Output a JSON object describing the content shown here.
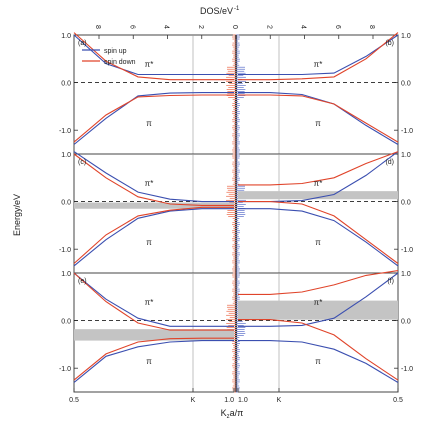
{
  "figure": {
    "top_label": "DOS/eV",
    "top_label_sup": "-1",
    "y_label": "Energy/eV",
    "x_label": "K",
    "x_label_sub": "z",
    "x_label_rest": "a/π"
  },
  "chart_data": {
    "type": "line",
    "colors": {
      "spin_up": "#3b4fb0",
      "spin_down": "#e0442a",
      "gap_band": "#c4c4c4",
      "dos_up": "#7f8fd6",
      "dos_down": "#f08a70"
    },
    "legend": {
      "placement": "top-left of panel (a)",
      "entries": [
        "spin up",
        "spin down"
      ]
    },
    "x_ticks_bottom": [
      "0.5",
      "K",
      "1.0",
      "1.0",
      "K",
      "0.5"
    ],
    "top_ticks": [
      "8",
      "6",
      "4",
      "2",
      "0",
      "2",
      "4",
      "6",
      "8"
    ],
    "rows": [
      {
        "ylim": [
          -1.5,
          1.0
        ],
        "yticks": [
          "1.0",
          "0.0",
          "-1.0"
        ],
        "yticks_right": [
          "1.0",
          "0.0",
          "-1.0"
        ]
      },
      {
        "ylim": [
          -1.5,
          1.0
        ],
        "yticks": [
          "1.0",
          "0.0",
          "-1.0"
        ],
        "yticks_right": [
          "1.0",
          "0.0",
          "-1.0"
        ]
      },
      {
        "ylim": [
          -1.5,
          1.0
        ],
        "yticks": [
          "1.0",
          "0.0",
          "-1.0"
        ],
        "yticks_right": [
          "1.0",
          "0.0",
          "-1.0"
        ]
      }
    ],
    "panels": [
      {
        "id": "a",
        "label": "(a)",
        "row": 0,
        "side": "left",
        "up": {
          "top": [
            [
              0.5,
              1.0
            ],
            [
              0.6,
              0.4
            ],
            [
              0.7,
              0.17
            ],
            [
              0.8,
              0.17
            ],
            [
              0.9,
              0.17
            ],
            [
              1.0,
              0.17
            ]
          ],
          "bottom": [
            [
              0.5,
              -1.3
            ],
            [
              0.6,
              -0.75
            ],
            [
              0.7,
              -0.28
            ],
            [
              0.8,
              -0.22
            ],
            [
              0.9,
              -0.21
            ],
            [
              1.0,
              -0.21
            ]
          ]
        },
        "down": {
          "top": [
            [
              0.5,
              1.05
            ],
            [
              0.6,
              0.45
            ],
            [
              0.7,
              0.12
            ],
            [
              0.8,
              0.06
            ],
            [
              0.9,
              0.06
            ],
            [
              1.0,
              0.06
            ]
          ],
          "bottom": [
            [
              0.5,
              -1.25
            ],
            [
              0.6,
              -0.68
            ],
            [
              0.7,
              -0.3
            ],
            [
              0.8,
              -0.27
            ],
            [
              0.9,
              -0.26
            ],
            [
              1.0,
              -0.26
            ]
          ]
        },
        "gap": null,
        "annotations": [
          "π*",
          "π"
        ]
      },
      {
        "id": "b",
        "label": "(b)",
        "row": 0,
        "side": "right",
        "up": {
          "top": [
            [
              1.0,
              0.17
            ],
            [
              0.9,
              0.17
            ],
            [
              0.8,
              0.17
            ],
            [
              0.7,
              0.2
            ],
            [
              0.6,
              0.55
            ],
            [
              0.5,
              1.0
            ]
          ],
          "bottom": [
            [
              1.0,
              -0.21
            ],
            [
              0.9,
              -0.21
            ],
            [
              0.8,
              -0.25
            ],
            [
              0.7,
              -0.45
            ],
            [
              0.6,
              -0.9
            ],
            [
              0.5,
              -1.3
            ]
          ]
        },
        "down": {
          "top": [
            [
              1.0,
              0.06
            ],
            [
              0.9,
              0.06
            ],
            [
              0.8,
              0.08
            ],
            [
              0.7,
              0.12
            ],
            [
              0.6,
              0.5
            ],
            [
              0.5,
              1.05
            ]
          ],
          "bottom": [
            [
              1.0,
              -0.26
            ],
            [
              0.9,
              -0.26
            ],
            [
              0.8,
              -0.28
            ],
            [
              0.7,
              -0.45
            ],
            [
              0.6,
              -0.85
            ],
            [
              0.5,
              -1.25
            ]
          ]
        },
        "gap": null,
        "annotations": [
          "π*",
          "π"
        ]
      },
      {
        "id": "c",
        "label": "(c)",
        "row": 1,
        "side": "left",
        "up": {
          "top": [
            [
              0.5,
              1.05
            ],
            [
              0.6,
              0.6
            ],
            [
              0.7,
              0.2
            ],
            [
              0.8,
              0.05
            ],
            [
              0.9,
              0.0
            ],
            [
              1.0,
              0.0
            ]
          ],
          "bottom": [
            [
              0.5,
              -1.35
            ],
            [
              0.6,
              -0.8
            ],
            [
              0.7,
              -0.35
            ],
            [
              0.8,
              -0.2
            ],
            [
              0.9,
              -0.15
            ],
            [
              1.0,
              -0.15
            ]
          ]
        },
        "down": {
          "top": [
            [
              0.5,
              1.0
            ],
            [
              0.6,
              0.5
            ],
            [
              0.7,
              0.1
            ],
            [
              0.8,
              -0.05
            ],
            [
              0.9,
              -0.08
            ],
            [
              1.0,
              -0.08
            ]
          ],
          "bottom": [
            [
              0.5,
              -1.3
            ],
            [
              0.6,
              -0.7
            ],
            [
              0.7,
              -0.3
            ],
            [
              0.8,
              -0.18
            ],
            [
              0.9,
              -0.12
            ],
            [
              1.0,
              -0.12
            ]
          ]
        },
        "gap": [
          -0.15,
          -0.02
        ],
        "annotations": [
          "π*",
          "π"
        ]
      },
      {
        "id": "d",
        "label": "(d)",
        "row": 1,
        "side": "right",
        "up": {
          "top": [
            [
              1.0,
              0.0
            ],
            [
              0.9,
              0.0
            ],
            [
              0.8,
              0.02
            ],
            [
              0.7,
              0.15
            ],
            [
              0.6,
              0.55
            ],
            [
              0.5,
              1.05
            ]
          ],
          "bottom": [
            [
              1.0,
              -0.15
            ],
            [
              0.9,
              -0.15
            ],
            [
              0.8,
              -0.2
            ],
            [
              0.7,
              -0.4
            ],
            [
              0.6,
              -0.85
            ],
            [
              0.5,
              -1.35
            ]
          ]
        },
        "down": {
          "top": [
            [
              1.0,
              0.35
            ],
            [
              0.9,
              0.35
            ],
            [
              0.8,
              0.38
            ],
            [
              0.7,
              0.5
            ],
            [
              0.6,
              0.8
            ],
            [
              0.5,
              1.05
            ]
          ],
          "bottom": [
            [
              1.0,
              0.0
            ],
            [
              0.9,
              0.0
            ],
            [
              0.8,
              -0.05
            ],
            [
              0.7,
              -0.3
            ],
            [
              0.6,
              -0.8
            ],
            [
              0.5,
              -1.3
            ]
          ]
        },
        "gap": [
          0.05,
          0.22
        ],
        "annotations": [
          "π*",
          "π"
        ]
      },
      {
        "id": "e",
        "label": "(e)",
        "row": 2,
        "side": "left",
        "up": {
          "top": [
            [
              0.5,
              1.0
            ],
            [
              0.6,
              0.45
            ],
            [
              0.7,
              0.05
            ],
            [
              0.8,
              -0.12
            ],
            [
              0.9,
              -0.12
            ],
            [
              1.0,
              -0.12
            ]
          ],
          "bottom": [
            [
              0.5,
              -1.3
            ],
            [
              0.6,
              -0.75
            ],
            [
              0.7,
              -0.55
            ],
            [
              0.8,
              -0.45
            ],
            [
              0.9,
              -0.42
            ],
            [
              1.0,
              -0.42
            ]
          ]
        },
        "down": {
          "top": [
            [
              0.5,
              1.0
            ],
            [
              0.6,
              0.4
            ],
            [
              0.7,
              -0.05
            ],
            [
              0.8,
              -0.2
            ],
            [
              0.9,
              -0.2
            ],
            [
              1.0,
              -0.2
            ]
          ],
          "bottom": [
            [
              0.5,
              -1.25
            ],
            [
              0.6,
              -0.7
            ],
            [
              0.7,
              -0.45
            ],
            [
              0.8,
              -0.38
            ],
            [
              0.9,
              -0.37
            ],
            [
              1.0,
              -0.37
            ]
          ]
        },
        "gap": [
          -0.42,
          -0.18
        ],
        "annotations": [
          "π*",
          "π"
        ]
      },
      {
        "id": "f",
        "label": "(f)",
        "row": 2,
        "side": "right",
        "up": {
          "top": [
            [
              1.0,
              -0.12
            ],
            [
              0.9,
              -0.12
            ],
            [
              0.8,
              -0.1
            ],
            [
              0.7,
              0.05
            ],
            [
              0.6,
              0.5
            ],
            [
              0.5,
              1.0
            ]
          ],
          "bottom": [
            [
              1.0,
              -0.42
            ],
            [
              0.9,
              -0.42
            ],
            [
              0.8,
              -0.45
            ],
            [
              0.7,
              -0.6
            ],
            [
              0.6,
              -0.9
            ],
            [
              0.5,
              -1.3
            ]
          ]
        },
        "down": {
          "top": [
            [
              1.0,
              0.55
            ],
            [
              0.9,
              0.55
            ],
            [
              0.8,
              0.6
            ],
            [
              0.7,
              0.75
            ],
            [
              0.6,
              0.95
            ],
            [
              0.5,
              1.05
            ]
          ],
          "bottom": [
            [
              1.0,
              0.02
            ],
            [
              0.9,
              0.02
            ],
            [
              0.8,
              -0.05
            ],
            [
              0.7,
              -0.3
            ],
            [
              0.6,
              -0.8
            ],
            [
              0.5,
              -1.25
            ]
          ]
        },
        "gap": [
          0.02,
          0.42
        ],
        "annotations": [
          "π*",
          "π"
        ]
      }
    ]
  }
}
